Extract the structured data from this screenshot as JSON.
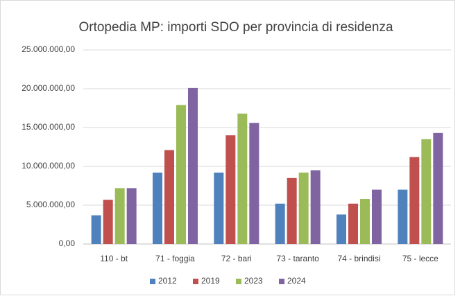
{
  "chart_data": {
    "type": "bar",
    "title": "Ortopedia MP: importi SDO per provincia di residenza",
    "categories": [
      "110 - bt",
      "71 - foggia",
      "72 - bari",
      "73 - taranto",
      "74 - brindisi",
      "75 - lecce"
    ],
    "series": [
      {
        "name": "2012",
        "color": "#4f81bd",
        "values": [
          3700000,
          9200000,
          9200000,
          5200000,
          3800000,
          7000000
        ]
      },
      {
        "name": "2019",
        "color": "#c0504d",
        "values": [
          5700000,
          12100000,
          14000000,
          8500000,
          5200000,
          11200000
        ]
      },
      {
        "name": "2023",
        "color": "#9bbb59",
        "values": [
          7200000,
          17900000,
          16800000,
          9200000,
          5800000,
          13500000
        ]
      },
      {
        "name": "2024",
        "color": "#8064a2",
        "values": [
          7200000,
          20100000,
          15600000,
          9500000,
          7000000,
          14300000
        ]
      }
    ],
    "ylim": [
      0,
      25000000
    ],
    "yticks": [
      {
        "value": 0,
        "label": "0,00"
      },
      {
        "value": 5000000,
        "label": "5.000.000,00"
      },
      {
        "value": 10000000,
        "label": "10.000.000,00"
      },
      {
        "value": 15000000,
        "label": "15.000.000,00"
      },
      {
        "value": 20000000,
        "label": "20.000.000,00"
      },
      {
        "value": 25000000,
        "label": "25.000.000,00"
      }
    ],
    "grid": true,
    "legend": "bottom"
  }
}
